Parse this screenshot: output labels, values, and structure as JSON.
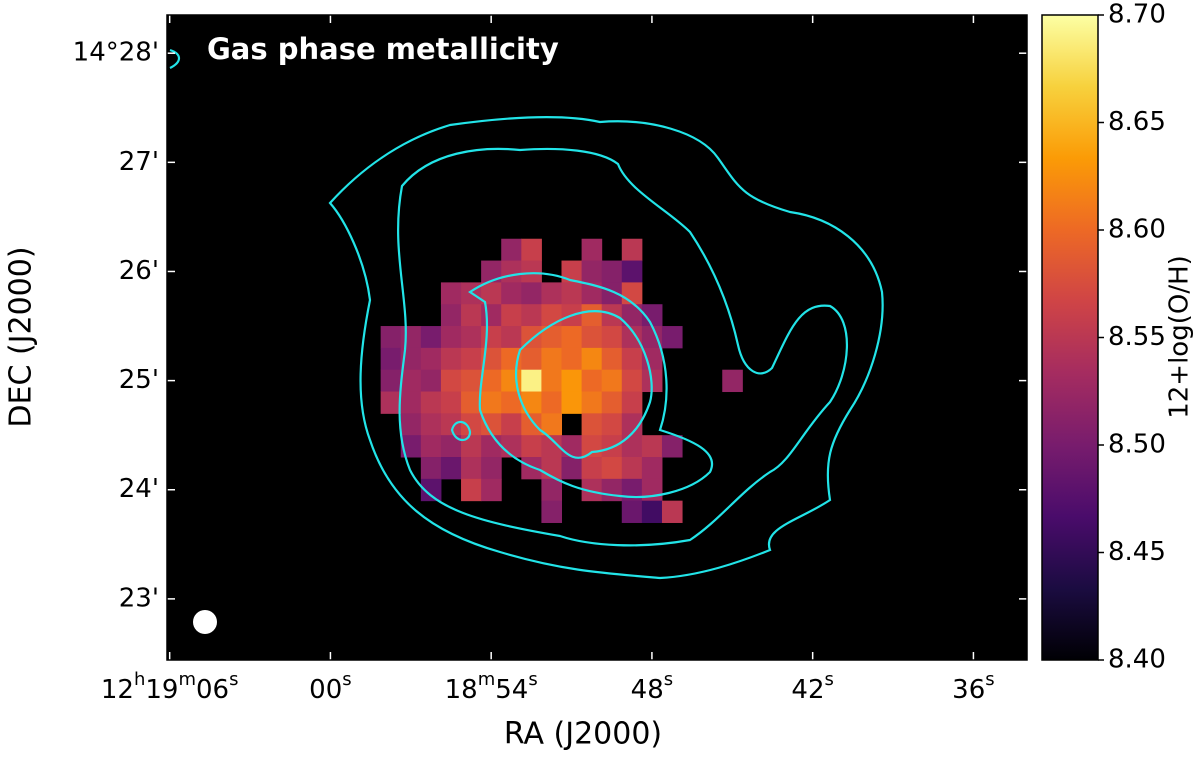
{
  "chart_data": {
    "type": "heatmap",
    "title": "Gas phase metallicity",
    "xlabel": "RA (J2000)",
    "ylabel": "DEC  (J2000)",
    "colorbar_label": "12+log(O/H)",
    "colormap": "inferno",
    "clim": [
      8.4,
      8.7
    ],
    "cticks": [
      {
        "value": 8.4,
        "label": "8.40"
      },
      {
        "value": 8.45,
        "label": "8.45"
      },
      {
        "value": 8.5,
        "label": "8.50"
      },
      {
        "value": 8.55,
        "label": "8.55"
      },
      {
        "value": 8.6,
        "label": "8.60"
      },
      {
        "value": 8.65,
        "label": "8.65"
      },
      {
        "value": 8.7,
        "label": "8.70"
      }
    ],
    "xlim": [
      66.1,
      34.0
    ],
    "ylim": [
      22.44,
      28.35
    ],
    "xticks": [
      {
        "value": 66,
        "label": "12h19m06s"
      },
      {
        "value": 60,
        "label": "00s"
      },
      {
        "value": 54,
        "label": "18m54s"
      },
      {
        "value": 48,
        "label": "48s"
      },
      {
        "value": 42,
        "label": "42s"
      },
      {
        "value": 36,
        "label": "36s"
      }
    ],
    "yticks": [
      {
        "value": 28,
        "label": "14°28'"
      },
      {
        "value": 27,
        "label": "27'"
      },
      {
        "value": 26,
        "label": "26'"
      },
      {
        "value": 25,
        "label": "25'"
      },
      {
        "value": 24,
        "label": "24'"
      },
      {
        "value": 23,
        "label": "23'"
      }
    ],
    "x": [
      57.75,
      57.0,
      56.25,
      55.5,
      54.75,
      54.0,
      53.25,
      52.5,
      51.75,
      51.0,
      50.25,
      49.5,
      48.75,
      48.0,
      47.25,
      46.5,
      45.75,
      45.0
    ],
    "y": [
      26.2,
      26.0,
      25.8,
      25.6,
      25.4,
      25.2,
      25.0,
      24.8,
      24.6,
      24.4,
      24.2,
      24.0,
      23.8
    ],
    "z": [
      [
        null,
        null,
        null,
        null,
        null,
        null,
        8.52,
        8.56,
        null,
        null,
        8.53,
        null,
        8.55,
        null,
        null,
        null,
        null,
        null
      ],
      [
        null,
        null,
        null,
        null,
        null,
        8.52,
        8.54,
        8.55,
        null,
        8.56,
        8.52,
        8.51,
        8.48,
        null,
        null,
        null,
        null,
        null
      ],
      [
        null,
        null,
        null,
        8.53,
        8.54,
        8.55,
        8.53,
        8.52,
        8.54,
        8.55,
        8.53,
        8.51,
        8.57,
        null,
        null,
        null,
        null,
        null
      ],
      [
        null,
        null,
        null,
        8.52,
        8.55,
        8.53,
        8.56,
        8.55,
        8.57,
        8.56,
        8.59,
        8.55,
        8.52,
        8.5,
        null,
        null,
        null,
        null
      ],
      [
        8.51,
        8.52,
        8.5,
        8.53,
        8.54,
        8.56,
        8.55,
        8.58,
        8.59,
        8.6,
        8.58,
        8.57,
        8.54,
        8.52,
        8.5,
        null,
        null,
        null
      ],
      [
        8.5,
        8.52,
        8.53,
        8.55,
        8.56,
        8.58,
        8.6,
        8.59,
        8.61,
        8.6,
        8.62,
        8.59,
        8.56,
        8.53,
        null,
        null,
        null,
        null
      ],
      [
        8.51,
        8.53,
        8.52,
        8.57,
        8.58,
        8.6,
        8.62,
        8.69,
        8.61,
        8.63,
        8.6,
        8.61,
        8.57,
        8.54,
        null,
        null,
        null,
        8.52
      ],
      [
        8.54,
        8.53,
        8.55,
        8.56,
        8.59,
        8.61,
        8.6,
        8.62,
        8.6,
        8.63,
        8.61,
        8.59,
        8.56,
        null,
        null,
        null,
        null,
        null
      ],
      [
        null,
        8.52,
        8.54,
        8.55,
        8.57,
        8.58,
        8.56,
        8.59,
        8.61,
        null,
        8.58,
        8.57,
        8.54,
        null,
        null,
        null,
        null,
        null
      ],
      [
        null,
        8.5,
        8.53,
        8.52,
        8.55,
        8.53,
        8.54,
        8.56,
        8.55,
        8.53,
        8.57,
        8.56,
        8.54,
        8.55,
        8.51,
        null,
        null,
        null
      ],
      [
        null,
        null,
        8.51,
        8.49,
        8.54,
        8.52,
        null,
        8.53,
        8.55,
        8.51,
        8.56,
        8.57,
        8.55,
        8.53,
        null,
        null,
        null,
        null
      ],
      [
        null,
        null,
        8.48,
        null,
        8.56,
        8.53,
        null,
        null,
        8.52,
        null,
        8.54,
        8.52,
        8.5,
        8.53,
        null,
        null,
        null,
        null
      ],
      [
        null,
        null,
        null,
        null,
        null,
        null,
        null,
        null,
        8.51,
        null,
        null,
        null,
        8.49,
        8.46,
        8.55,
        null,
        null,
        null
      ]
    ]
  }
}
